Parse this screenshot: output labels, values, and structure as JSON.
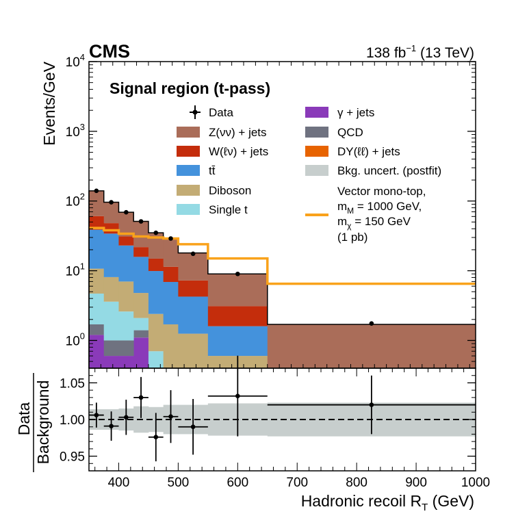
{
  "header": {
    "experiment": "CMS",
    "lumi_value": "138 fb",
    "lumi_exp": "−1",
    "energy": " (13 TeV)"
  },
  "region_label": "Signal region (t-pass)",
  "chart_data": [
    {
      "type": "stacked-histogram",
      "yscale": "log",
      "ylabel": "Events/GeV",
      "xlim": [
        350,
        1000
      ],
      "ylim": [
        0.4,
        10000
      ],
      "yticks": [
        {
          "value": 1,
          "base": "10",
          "exp": "0"
        },
        {
          "value": 10,
          "base": "10",
          "exp": "1"
        },
        {
          "value": 100,
          "base": "10",
          "exp": "2"
        },
        {
          "value": 1000,
          "base": "10",
          "exp": "3"
        },
        {
          "value": 10000,
          "base": "10",
          "exp": "4"
        }
      ],
      "bin_edges": [
        350,
        375,
        400,
        425,
        450,
        475,
        500,
        550,
        650,
        1000
      ],
      "series": [
        {
          "name": "γ + jets",
          "color": "#8a3ab9",
          "values": [
            1.2,
            0.6,
            0.6,
            1.1,
            0,
            0,
            0,
            0,
            0
          ]
        },
        {
          "name": "QCD",
          "color": "#6f7280",
          "values": [
            0.5,
            0.4,
            0.4,
            0.3,
            0,
            0,
            0,
            0,
            0
          ]
        },
        {
          "name": "DY(ℓℓ) + jets",
          "color": "#e76300",
          "values": [
            0,
            0,
            0,
            0,
            0,
            0,
            0,
            0,
            0
          ]
        },
        {
          "name": "Single t",
          "color": "#94dae4",
          "values": [
            3.0,
            2.6,
            1.6,
            0.7,
            0.7,
            0.4,
            0.25,
            0,
            0
          ]
        },
        {
          "name": "Diboson",
          "color": "#c3ac75",
          "values": [
            6.0,
            4.5,
            4.4,
            2.7,
            1.7,
            1.3,
            1.0,
            0.6,
            0
          ]
        },
        {
          "name": "tt̄",
          "color": "#4492dc",
          "values": [
            28,
            26,
            16,
            11,
            7.5,
            5.2,
            3.0,
            1.0,
            0
          ]
        },
        {
          "name": "W(ℓν) + jets",
          "color": "#c42d0c",
          "values": [
            22,
            14,
            8,
            6,
            5.0,
            4.5,
            3.0,
            1.5,
            0
          ]
        },
        {
          "name": "Z(νν) + jets",
          "color": "#aa6d59",
          "values": [
            80,
            48,
            38,
            30,
            20,
            18,
            11,
            6,
            1.7
          ]
        }
      ],
      "totals": [
        140,
        96,
        69,
        51,
        35,
        29.5,
        18,
        9,
        1.7
      ],
      "data_points": [
        {
          "x": 362.5,
          "y": 140
        },
        {
          "x": 387.5,
          "y": 96
        },
        {
          "x": 412.5,
          "y": 69
        },
        {
          "x": 437.5,
          "y": 51
        },
        {
          "x": 462.5,
          "y": 35
        },
        {
          "x": 487.5,
          "y": 29
        },
        {
          "x": 525,
          "y": 17.5
        },
        {
          "x": 600,
          "y": 9
        },
        {
          "x": 825,
          "y": 1.75
        }
      ],
      "signal": {
        "name": "Vector mono-top",
        "color": "#f9a21b",
        "values": [
          41,
          38,
          34,
          31,
          30,
          29,
          24,
          15,
          6.5
        ]
      }
    },
    {
      "type": "ratio",
      "ylabel_top": "Data",
      "ylabel_bottom": "Background",
      "xlabel_text": "Hadronic recoil R",
      "xlabel_sub": "T",
      "xlabel_unit": " (GeV)",
      "xlim": [
        350,
        1000
      ],
      "ylim": [
        0.93,
        1.07
      ],
      "xticks": [
        "400",
        "500",
        "600",
        "700",
        "800",
        "900",
        "1000"
      ],
      "yticks": [
        "0.95",
        "1.00",
        "1.05"
      ],
      "uncert_band": [
        0.014,
        0.014,
        0.015,
        0.018,
        0.017,
        0.02,
        0.02,
        0.022,
        0.023
      ],
      "points": [
        {
          "x": 362.5,
          "xerr": 12.5,
          "y": 1.006,
          "yerr": 0.017
        },
        {
          "x": 387.5,
          "xerr": 12.5,
          "y": 0.991,
          "yerr": 0.02
        },
        {
          "x": 412.5,
          "xerr": 12.5,
          "y": 1.003,
          "yerr": 0.024
        },
        {
          "x": 437.5,
          "xerr": 12.5,
          "y": 1.03,
          "yerr": 0.028
        },
        {
          "x": 462.5,
          "xerr": 12.5,
          "y": 0.976,
          "yerr": 0.033
        },
        {
          "x": 487.5,
          "xerr": 12.5,
          "y": 1.004,
          "yerr": 0.036
        },
        {
          "x": 525,
          "xerr": 25,
          "y": 0.99,
          "yerr": 0.038
        },
        {
          "x": 600,
          "xerr": 50,
          "y": 1.032,
          "yerr": 0.055
        },
        {
          "x": 825,
          "xerr": 175,
          "y": 1.02,
          "yerr": 0.04
        }
      ]
    }
  ],
  "legend": {
    "data": "Data",
    "zvv": "Z(νν) + jets",
    "wlv": "W(ℓν) + jets",
    "tt": "tt̄",
    "diboson": "Diboson",
    "singlet": "Single t",
    "gjets": "γ + jets",
    "qcd": "QCD",
    "dy": "DY(ℓℓ) + jets",
    "bkg_unc": "Bkg. uncert. (postfit)",
    "signal_line1": "Vector mono-top,",
    "signal_m_sym": "m",
    "signal_m_sub": "M",
    "signal_m_val": " = 1000 GeV,",
    "signal_x_sym": "m",
    "signal_x_sub": "χ",
    "signal_x_val": " = 150 GeV",
    "signal_xsec": "(1 pb)"
  },
  "colors": {
    "uncert": "#c7cecd",
    "signal": "#f9a21b"
  }
}
